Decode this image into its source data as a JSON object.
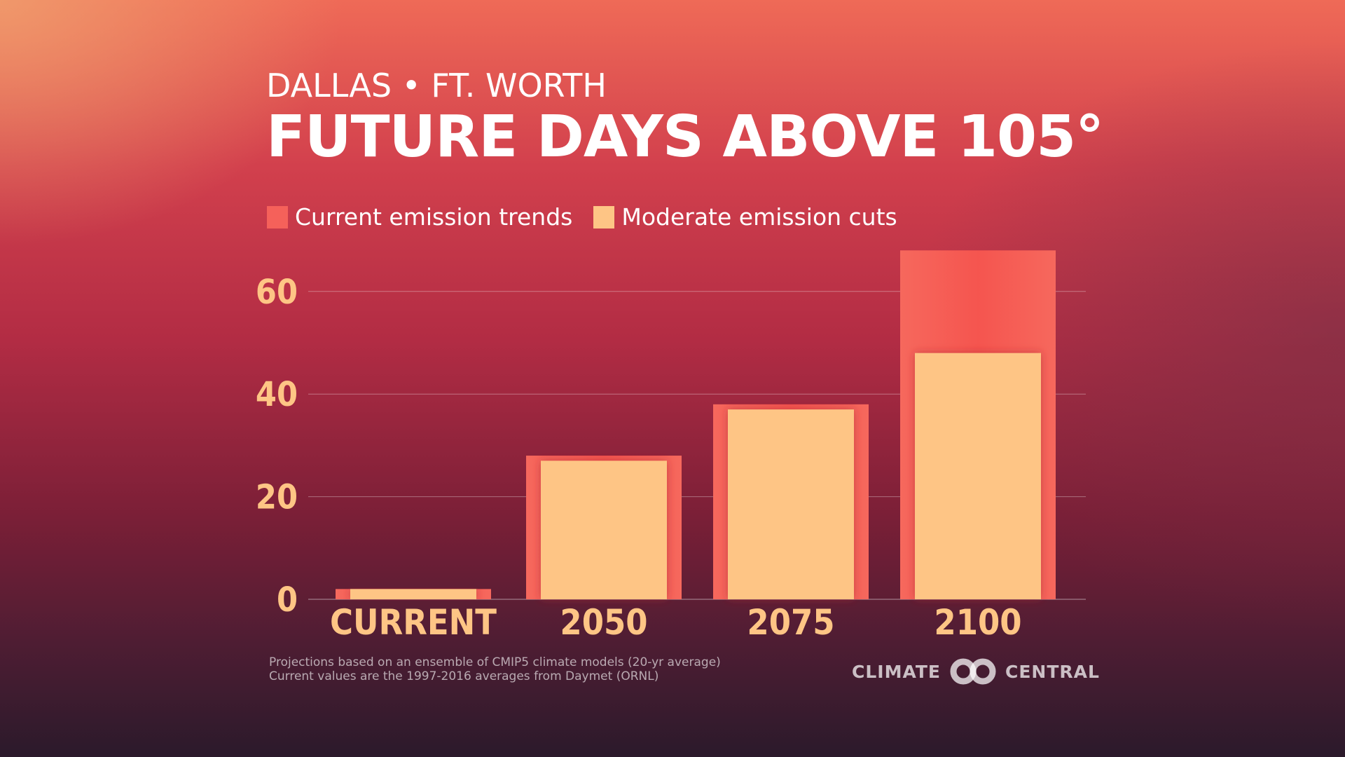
{
  "header": {
    "subtitle": "DALLAS • FT. WORTH",
    "title": "FUTURE DAYS ABOVE 105°"
  },
  "legend": [
    {
      "label": "Current emission trends",
      "color": "#f5615a"
    },
    {
      "label": "Moderate emission cuts",
      "color": "#fec585"
    }
  ],
  "chart_data": {
    "type": "bar",
    "title": "FUTURE DAYS ABOVE 105°",
    "subtitle": "DALLAS • FT. WORTH",
    "categories": [
      "CURRENT",
      "2050",
      "2075",
      "2100"
    ],
    "series": [
      {
        "name": "Current emission trends",
        "values": [
          2,
          28,
          38,
          68
        ]
      },
      {
        "name": "Moderate emission cuts",
        "values": [
          2,
          27,
          37,
          48
        ]
      }
    ],
    "y_ticks": [
      0,
      20,
      40,
      60
    ],
    "ylim": [
      0,
      70
    ],
    "xlabel": "",
    "ylabel": "",
    "grid": true,
    "legend_position": "top-left"
  },
  "colors": {
    "current_trends": "#f5615a",
    "moderate_cuts": "#fec585",
    "axis_labels": "#fec585",
    "gridline": "rgba(255,255,255,0.35)"
  },
  "footnotes": [
    "Projections based on an ensemble of CMIP5 climate models (20-yr average)",
    "Current values are the 1997-2016 averages from Daymet (ORNL)"
  ],
  "logo": {
    "left_text": "CLIMATE",
    "right_text": "CENTRAL",
    "icon": "climate-central-rings-icon"
  }
}
